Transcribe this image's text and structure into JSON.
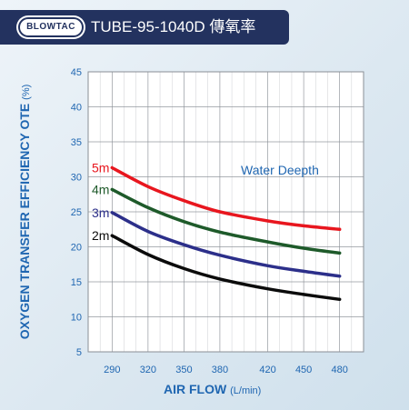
{
  "header": {
    "logo_text": "BLOWTAC",
    "title": "TUBE-95-1040D 傳氧率"
  },
  "colors": {
    "header_bg": "#23325f",
    "axis_text": "#1f66b1",
    "grid": "#8a8f96"
  },
  "chart_data": {
    "type": "line",
    "ylabel_main": "OXYGEN TRANSFER EFFICIENCY   OTE",
    "ylabel_unit": "(%)",
    "xlabel_main": "AIR FLOW",
    "xlabel_unit": "(L/min)",
    "annotation": "Water Deepth",
    "xlim": [
      270,
      500
    ],
    "ylim": [
      5,
      45
    ],
    "xticks": [
      290,
      320,
      350,
      380,
      420,
      450,
      480
    ],
    "yticks": [
      5,
      10,
      15,
      20,
      25,
      30,
      35,
      40,
      45
    ],
    "grid": true,
    "x": [
      290,
      320,
      350,
      380,
      420,
      450,
      480
    ],
    "series": [
      {
        "name": "5m",
        "color": "#e8161e",
        "values": [
          31.3,
          28.6,
          26.6,
          25.0,
          23.7,
          23.0,
          22.5
        ]
      },
      {
        "name": "4m",
        "color": "#1e5a2a",
        "values": [
          28.2,
          25.6,
          23.6,
          22.1,
          20.7,
          19.8,
          19.1
        ]
      },
      {
        "name": "3m",
        "color": "#2c2f8a",
        "values": [
          24.9,
          22.2,
          20.3,
          18.8,
          17.3,
          16.5,
          15.8
        ]
      },
      {
        "name": "2m",
        "color": "#0b0b0b",
        "values": [
          21.6,
          18.9,
          16.9,
          15.4,
          14.0,
          13.2,
          12.5
        ]
      }
    ]
  }
}
